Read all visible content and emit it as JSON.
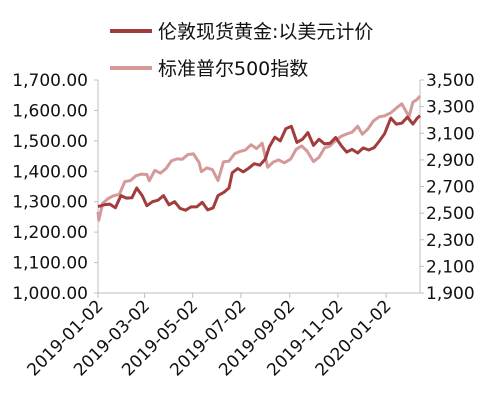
{
  "chart_data": {
    "type": "line",
    "legend_placement": "top",
    "grid": false,
    "x_ticks": [
      "2019-01-02",
      "2019-03-02",
      "2019-05-02",
      "2019-07-02",
      "2019-09-02",
      "2019-11-02",
      "2020-01-02"
    ],
    "x_range": [
      "2019-01-02",
      "2020-02-14"
    ],
    "left_axis": {
      "ylim": [
        1000,
        1700
      ],
      "ticks": [
        "1,000.00",
        "1,100.00",
        "1,200.00",
        "1,300.00",
        "1,400.00",
        "1,500.00",
        "1,600.00",
        "1,700.00"
      ]
    },
    "right_axis": {
      "ylim": [
        1900,
        3500
      ],
      "ticks": [
        "1,900",
        "2,100",
        "2,300",
        "2,500",
        "2,700",
        "2,900",
        "3,100",
        "3,300",
        "3,500"
      ]
    },
    "series": [
      {
        "name": "伦敦现货黄金:以美元计价",
        "axis": "left",
        "color": "#a33c3c",
        "points": [
          [
            "2019-01-02",
            1284
          ],
          [
            "2019-01-10",
            1290
          ],
          [
            "2019-01-17",
            1292
          ],
          [
            "2019-01-24",
            1280
          ],
          [
            "2019-01-31",
            1320
          ],
          [
            "2019-02-07",
            1312
          ],
          [
            "2019-02-14",
            1313
          ],
          [
            "2019-02-20",
            1345
          ],
          [
            "2019-02-27",
            1320
          ],
          [
            "2019-03-05",
            1287
          ],
          [
            "2019-03-12",
            1300
          ],
          [
            "2019-03-19",
            1305
          ],
          [
            "2019-03-26",
            1320
          ],
          [
            "2019-04-02",
            1290
          ],
          [
            "2019-04-09",
            1300
          ],
          [
            "2019-04-16",
            1278
          ],
          [
            "2019-04-23",
            1272
          ],
          [
            "2019-04-30",
            1283
          ],
          [
            "2019-05-07",
            1283
          ],
          [
            "2019-05-14",
            1298
          ],
          [
            "2019-05-21",
            1273
          ],
          [
            "2019-05-28",
            1280
          ],
          [
            "2019-06-03",
            1320
          ],
          [
            "2019-06-10",
            1330
          ],
          [
            "2019-06-17",
            1345
          ],
          [
            "2019-06-21",
            1395
          ],
          [
            "2019-06-28",
            1409
          ],
          [
            "2019-07-05",
            1398
          ],
          [
            "2019-07-12",
            1410
          ],
          [
            "2019-07-19",
            1425
          ],
          [
            "2019-07-26",
            1420
          ],
          [
            "2019-08-02",
            1440
          ],
          [
            "2019-08-07",
            1480
          ],
          [
            "2019-08-14",
            1512
          ],
          [
            "2019-08-21",
            1500
          ],
          [
            "2019-08-28",
            1540
          ],
          [
            "2019-09-04",
            1548
          ],
          [
            "2019-09-11",
            1495
          ],
          [
            "2019-09-18",
            1505
          ],
          [
            "2019-09-25",
            1527
          ],
          [
            "2019-10-02",
            1485
          ],
          [
            "2019-10-09",
            1505
          ],
          [
            "2019-10-16",
            1490
          ],
          [
            "2019-10-23",
            1492
          ],
          [
            "2019-10-30",
            1511
          ],
          [
            "2019-11-06",
            1485
          ],
          [
            "2019-11-13",
            1463
          ],
          [
            "2019-11-20",
            1472
          ],
          [
            "2019-11-27",
            1460
          ],
          [
            "2019-12-04",
            1477
          ],
          [
            "2019-12-11",
            1470
          ],
          [
            "2019-12-18",
            1478
          ],
          [
            "2019-12-24",
            1498
          ],
          [
            "2019-12-31",
            1523
          ],
          [
            "2020-01-08",
            1575
          ],
          [
            "2020-01-15",
            1555
          ],
          [
            "2020-01-22",
            1558
          ],
          [
            "2020-01-29",
            1578
          ],
          [
            "2020-02-05",
            1555
          ],
          [
            "2020-02-10",
            1573
          ],
          [
            "2020-02-14",
            1583
          ]
        ]
      },
      {
        "name": "标准普尔500指数",
        "axis": "right",
        "color": "#d49a9a",
        "points": [
          [
            "2019-01-02",
            2510
          ],
          [
            "2019-01-03",
            2447
          ],
          [
            "2019-01-08",
            2574
          ],
          [
            "2019-01-15",
            2610
          ],
          [
            "2019-01-22",
            2632
          ],
          [
            "2019-01-29",
            2640
          ],
          [
            "2019-02-05",
            2737
          ],
          [
            "2019-02-12",
            2744
          ],
          [
            "2019-02-19",
            2780
          ],
          [
            "2019-02-26",
            2793
          ],
          [
            "2019-03-05",
            2790
          ],
          [
            "2019-03-08",
            2743
          ],
          [
            "2019-03-15",
            2822
          ],
          [
            "2019-03-22",
            2800
          ],
          [
            "2019-03-29",
            2834
          ],
          [
            "2019-04-05",
            2892
          ],
          [
            "2019-04-12",
            2907
          ],
          [
            "2019-04-19",
            2905
          ],
          [
            "2019-04-26",
            2940
          ],
          [
            "2019-05-03",
            2945
          ],
          [
            "2019-05-10",
            2881
          ],
          [
            "2019-05-13",
            2811
          ],
          [
            "2019-05-20",
            2840
          ],
          [
            "2019-05-27",
            2826
          ],
          [
            "2019-06-03",
            2744
          ],
          [
            "2019-06-10",
            2886
          ],
          [
            "2019-06-17",
            2890
          ],
          [
            "2019-06-24",
            2945
          ],
          [
            "2019-07-01",
            2964
          ],
          [
            "2019-07-08",
            2975
          ],
          [
            "2019-07-15",
            3014
          ],
          [
            "2019-07-22",
            2985
          ],
          [
            "2019-07-29",
            3025
          ],
          [
            "2019-08-05",
            2844
          ],
          [
            "2019-08-12",
            2883
          ],
          [
            "2019-08-19",
            2900
          ],
          [
            "2019-08-26",
            2878
          ],
          [
            "2019-09-03",
            2906
          ],
          [
            "2019-09-10",
            2979
          ],
          [
            "2019-09-17",
            3005
          ],
          [
            "2019-09-24",
            2966
          ],
          [
            "2019-10-02",
            2887
          ],
          [
            "2019-10-09",
            2919
          ],
          [
            "2019-10-16",
            2989
          ],
          [
            "2019-10-23",
            3004
          ],
          [
            "2019-10-30",
            3046
          ],
          [
            "2019-11-06",
            3076
          ],
          [
            "2019-11-13",
            3094
          ],
          [
            "2019-11-20",
            3108
          ],
          [
            "2019-11-27",
            3153
          ],
          [
            "2019-12-03",
            3093
          ],
          [
            "2019-12-10",
            3132
          ],
          [
            "2019-12-17",
            3192
          ],
          [
            "2019-12-24",
            3223
          ],
          [
            "2019-12-31",
            3230
          ],
          [
            "2020-01-08",
            3253
          ],
          [
            "2020-01-15",
            3289
          ],
          [
            "2020-01-22",
            3321
          ],
          [
            "2020-01-31",
            3225
          ],
          [
            "2020-02-05",
            3334
          ],
          [
            "2020-02-10",
            3352
          ],
          [
            "2020-02-14",
            3380
          ]
        ]
      }
    ]
  }
}
